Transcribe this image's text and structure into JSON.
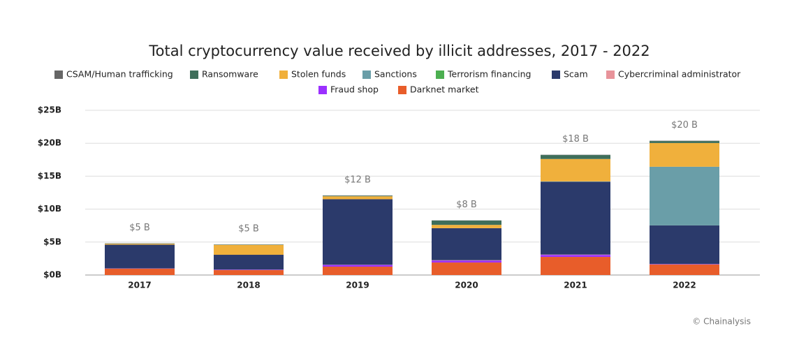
{
  "chart_data": {
    "type": "stacked_bar",
    "title": "Total cryptocurrency value received by illicit addresses, 2017 - 2022",
    "categories": [
      "2017",
      "2018",
      "2019",
      "2020",
      "2021",
      "2022"
    ],
    "series": [
      {
        "name": "CSAM/Human trafficking",
        "color": "#666666",
        "values": [
          0.02,
          0.02,
          0.03,
          0.03,
          0.04,
          0.05
        ]
      },
      {
        "name": "Ransomware",
        "color": "#3e6e5a",
        "values": [
          0.05,
          0.05,
          0.1,
          0.65,
          0.6,
          0.3
        ]
      },
      {
        "name": "Stolen funds",
        "color": "#f0b03c",
        "values": [
          0.15,
          1.5,
          0.45,
          0.5,
          3.4,
          3.6
        ]
      },
      {
        "name": "Sanctions",
        "color": "#6a9ea8",
        "values": [
          0,
          0,
          0,
          0,
          0.05,
          8.9
        ]
      },
      {
        "name": "Terrorism financing",
        "color": "#4caf50",
        "values": [
          0,
          0,
          0,
          0.01,
          0.01,
          0.01
        ]
      },
      {
        "name": "Scam",
        "color": "#2b3a6b",
        "values": [
          3.6,
          2.25,
          9.95,
          4.85,
          11.05,
          5.85
        ]
      },
      {
        "name": "Cybercriminal administrator",
        "color": "#e8939a",
        "values": [
          0.02,
          0.02,
          0.03,
          0.05,
          0.05,
          0.02
        ]
      },
      {
        "name": "Fraud shop",
        "color": "#9b30ff",
        "values": [
          0.03,
          0.05,
          0.25,
          0.3,
          0.3,
          0.05
        ]
      },
      {
        "name": "Darknet market",
        "color": "#e85d2a",
        "values": [
          0.95,
          0.75,
          1.27,
          1.9,
          2.75,
          1.6
        ]
      }
    ],
    "annotations": [
      "$5 B",
      "$5 B",
      "$12 B",
      "$8 B",
      "$18 B",
      "$20 B"
    ],
    "ylim": [
      0,
      25
    ],
    "yticks": [
      {
        "value": 0,
        "label": "$0B"
      },
      {
        "value": 5,
        "label": "$5B"
      },
      {
        "value": 10,
        "label": "$10B"
      },
      {
        "value": 15,
        "label": "$15B"
      },
      {
        "value": 20,
        "label": "$20B"
      },
      {
        "value": 25,
        "label": "$25B"
      }
    ],
    "grid": true,
    "source": "© Chainalysis"
  }
}
